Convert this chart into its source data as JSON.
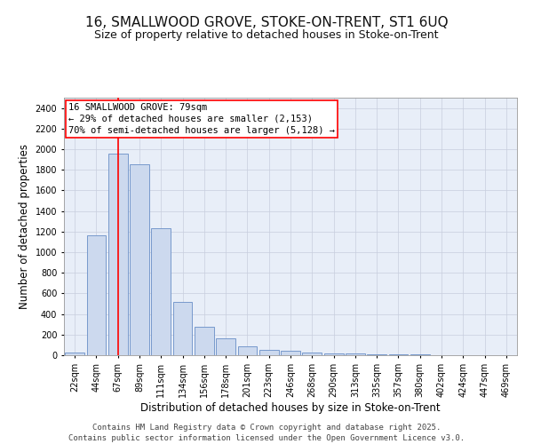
{
  "title_line1": "16, SMALLWOOD GROVE, STOKE-ON-TRENT, ST1 6UQ",
  "title_line2": "Size of property relative to detached houses in Stoke-on-Trent",
  "xlabel": "Distribution of detached houses by size in Stoke-on-Trent",
  "ylabel": "Number of detached properties",
  "categories": [
    "22sqm",
    "44sqm",
    "67sqm",
    "89sqm",
    "111sqm",
    "134sqm",
    "156sqm",
    "178sqm",
    "201sqm",
    "223sqm",
    "246sqm",
    "268sqm",
    "290sqm",
    "313sqm",
    "335sqm",
    "357sqm",
    "380sqm",
    "402sqm",
    "424sqm",
    "447sqm",
    "469sqm"
  ],
  "values": [
    30,
    1160,
    1960,
    1850,
    1230,
    515,
    275,
    160,
    90,
    48,
    42,
    28,
    20,
    15,
    10,
    8,
    5,
    3,
    2,
    2,
    2
  ],
  "bar_facecolor": "#ccd9ee",
  "bar_edgecolor": "#7799cc",
  "grid_color": "#c8cedd",
  "background_color": "#e8eef8",
  "annotation_line1": "16 SMALLWOOD GROVE: 79sqm",
  "annotation_line2": "← 29% of detached houses are smaller (2,153)",
  "annotation_line3": "70% of semi-detached houses are larger (5,128) →",
  "vline_x_index": 2,
  "vline_color": "red",
  "ylim": [
    0,
    2500
  ],
  "yticks": [
    0,
    200,
    400,
    600,
    800,
    1000,
    1200,
    1400,
    1600,
    1800,
    2000,
    2200,
    2400
  ],
  "footer_text": "Contains HM Land Registry data © Crown copyright and database right 2025.\nContains public sector information licensed under the Open Government Licence v3.0.",
  "title_fontsize": 11,
  "subtitle_fontsize": 9,
  "axis_label_fontsize": 8.5,
  "tick_fontsize": 7,
  "annotation_fontsize": 7.5,
  "footer_fontsize": 6.5
}
